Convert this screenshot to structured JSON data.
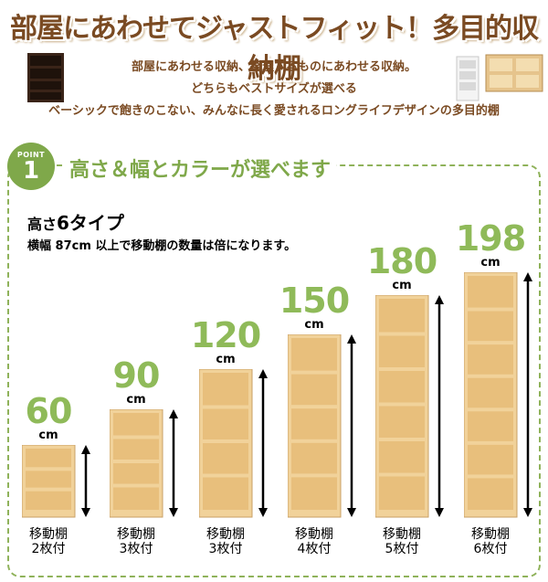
{
  "banner": {
    "title": "部屋にあわせてジャストフィット！多目的収納棚"
  },
  "intro": {
    "line1": "部屋にあわせる収納、整理するものにあわせる収納。",
    "line2": "どちらもベストサイズが選べる",
    "line3": "ベーシックで飽きのこない、みんなに長く愛されるロングライフデザインの多目的棚"
  },
  "point": {
    "label": "POINT",
    "number": "1",
    "title": "高さ＆幅とカラーが選べます"
  },
  "types": {
    "heading_prefix": "高さ",
    "heading_big": "6タイプ",
    "note": "横幅 87cm 以上で移動棚の数量は倍になります。"
  },
  "colors": {
    "wood": "#f1d29a",
    "wood_edge": "#c9a066",
    "accent": "#8fba59",
    "brown": "#7a4a22"
  },
  "shelves": [
    {
      "height": "60",
      "unit": "cm",
      "caption1": "移動棚",
      "caption2": "2枚付",
      "shelf_count": 3
    },
    {
      "height": "90",
      "unit": "cm",
      "caption1": "移動棚",
      "caption2": "3枚付",
      "shelf_count": 4
    },
    {
      "height": "120",
      "unit": "cm",
      "caption1": "移動棚",
      "caption2": "3枚付",
      "shelf_count": 4
    },
    {
      "height": "150",
      "unit": "cm",
      "caption1": "移動棚",
      "caption2": "4枚付",
      "shelf_count": 5
    },
    {
      "height": "180",
      "unit": "cm",
      "caption1": "移動棚",
      "caption2": "5枚付",
      "shelf_count": 6
    },
    {
      "height": "198",
      "unit": "cm",
      "caption1": "移動棚",
      "caption2": "6枚付",
      "shelf_count": 7
    }
  ]
}
